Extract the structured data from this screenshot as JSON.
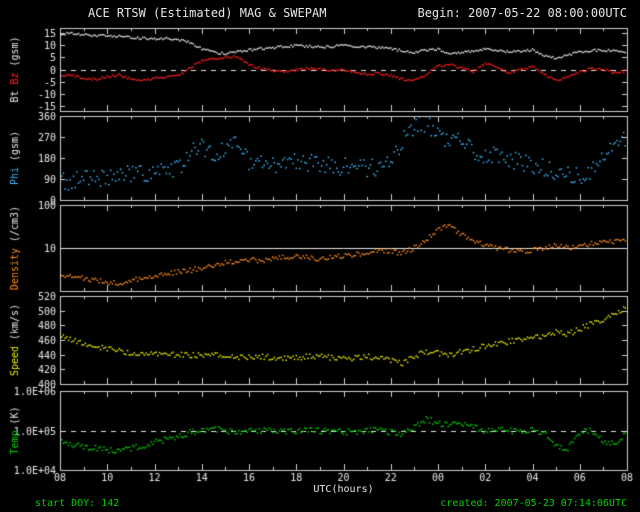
{
  "header": {
    "title": "ACE RTSW (Estimated) MAG & SWEPAM",
    "begin_label": "Begin: 2007-05-22 08:00:00UTC"
  },
  "footer": {
    "xaxis_label": "UTC(hours)",
    "start_doy": "start DOY: 142",
    "created": "created: 2007-05-23 07:14:06UTC"
  },
  "colors": {
    "background": "#000000",
    "frame": "#cfcfcf",
    "text": "#e6e6e6",
    "bt": "#e6e6e6",
    "bz": "#ff2020",
    "phi": "#3bb9ff",
    "density": "#ff8c1a",
    "speed": "#e8e800",
    "temp": "#00d000",
    "footer_green": "#00d000"
  },
  "chart_data": {
    "type": "scatter",
    "title": "ACE RTSW (Estimated) MAG & SWEPAM",
    "xlabel": "UTC(hours)",
    "xlim": [
      8,
      32
    ],
    "x_ticks": {
      "major_values": [
        8,
        10,
        12,
        14,
        16,
        18,
        20,
        22,
        24,
        26,
        28,
        30,
        32
      ],
      "labels": [
        "08",
        "10",
        "12",
        "14",
        "16",
        "18",
        "20",
        "22",
        "00",
        "02",
        "04",
        "06",
        "08"
      ],
      "minor_step": 1
    },
    "x": [
      8,
      8.5,
      9,
      9.5,
      10,
      10.5,
      11,
      11.5,
      12,
      12.5,
      13,
      13.5,
      14,
      14.5,
      15,
      15.5,
      16,
      16.5,
      17,
      17.5,
      18,
      18.5,
      19,
      19.5,
      20,
      20.5,
      21,
      21.5,
      22,
      22.5,
      23,
      23.5,
      24,
      24.5,
      25,
      25.5,
      26,
      26.5,
      27,
      27.5,
      28,
      28.5,
      29,
      29.5,
      30,
      30.5,
      31,
      31.5,
      32
    ],
    "panels": [
      {
        "name": "bt-bz",
        "log": false,
        "ylim": [
          -17,
          17
        ],
        "ticks": [
          {
            "v": 15,
            "l": "15"
          },
          {
            "v": 10,
            "l": "10"
          },
          {
            "v": 5,
            "l": "5"
          },
          {
            "v": 0,
            "l": "0"
          },
          {
            "v": -5,
            "l": "-5"
          },
          {
            "v": -10,
            "l": "-10"
          },
          {
            "v": -15,
            "l": "-15"
          }
        ],
        "ref_lines": [
          {
            "v": 0,
            "dash": true
          }
        ],
        "label_parts": [
          {
            "text": "Bt ",
            "color": "#e6e6e6"
          },
          {
            "text": "Bz ",
            "color": "#ff2020"
          },
          {
            "text": "(gsm)",
            "color": "#e6e6e6"
          }
        ],
        "series": [
          {
            "name": "Bt",
            "color": "#e6e6e6",
            "noise": 1.2,
            "values": [
              14.5,
              14.8,
              14.2,
              13.8,
              14.0,
              13.6,
              13.0,
              12.8,
              12.5,
              12.7,
              12.2,
              11.0,
              8.5,
              7.0,
              6.5,
              7.5,
              8.0,
              8.6,
              9.0,
              9.4,
              9.8,
              9.5,
              9.2,
              9.5,
              9.8,
              9.5,
              9.2,
              9.0,
              8.5,
              7.6,
              7.0,
              7.8,
              8.2,
              6.5,
              7.0,
              7.5,
              8.4,
              7.8,
              7.2,
              7.6,
              8.0,
              5.5,
              4.5,
              6.0,
              7.2,
              7.8,
              8.0,
              7.6,
              7.2
            ]
          },
          {
            "name": "Bz",
            "color": "#ff2020",
            "noise": 1.2,
            "values": [
              -3.0,
              -2.5,
              -3.5,
              -4.0,
              -3.0,
              -2.2,
              -4.0,
              -4.5,
              -3.5,
              -3.0,
              -2.5,
              0.5,
              3.5,
              4.5,
              5.0,
              5.5,
              2.0,
              0.5,
              -0.5,
              -1.0,
              0.0,
              0.5,
              0.0,
              -0.5,
              0.0,
              -1.0,
              -2.0,
              -1.5,
              -2.5,
              -4.0,
              -4.5,
              -2.0,
              1.5,
              2.0,
              0.5,
              -1.0,
              2.5,
              1.0,
              -1.5,
              0.0,
              1.0,
              -2.0,
              -4.5,
              -3.0,
              -1.0,
              0.5,
              0.0,
              -1.5,
              -0.5
            ]
          }
        ]
      },
      {
        "name": "phi",
        "log": false,
        "ylim": [
          0,
          360
        ],
        "ticks": [
          {
            "v": 360,
            "l": "360"
          },
          {
            "v": 270,
            "l": "270"
          },
          {
            "v": 180,
            "l": "180"
          },
          {
            "v": 90,
            "l": "90"
          },
          {
            "v": 0,
            "l": "0"
          }
        ],
        "ref_lines": [],
        "label_parts": [
          {
            "text": "Phi ",
            "color": "#3bb9ff"
          },
          {
            "text": "(gsm)",
            "color": "#e6e6e6"
          }
        ],
        "series": [
          {
            "name": "Phi",
            "color": "#3bb9ff",
            "noise": 9,
            "values": [
              78,
              82,
              88,
              92,
              98,
              104,
              110,
              116,
              122,
              130,
              136,
              200,
              225,
              195,
              215,
              235,
              165,
              152,
              146,
              156,
              166,
              160,
              152,
              146,
              142,
              138,
              136,
              142,
              152,
              250,
              310,
              330,
              275,
              235,
              255,
              205,
              182,
              192,
              172,
              162,
              152,
              142,
              122,
              112,
              102,
              132,
              182,
              225,
              265
            ]
          }
        ]
      },
      {
        "name": "density",
        "log": true,
        "ylim": [
          1,
          100
        ],
        "ticks": [
          {
            "v": 100,
            "l": "100"
          },
          {
            "v": 10,
            "l": "10"
          }
        ],
        "ref_lines": [
          {
            "v": 10,
            "dash": false
          }
        ],
        "label_parts": [
          {
            "text": "Density ",
            "color": "#ff8c1a"
          },
          {
            "text": "(/cm3)",
            "color": "#e6e6e6"
          }
        ],
        "series": [
          {
            "name": "Density",
            "color": "#ff8c1a",
            "noise": 2.5,
            "values": [
              2.5,
              2.2,
              2.0,
              1.8,
              1.6,
              1.5,
              1.7,
              2.0,
              2.2,
              2.5,
              2.8,
              3.0,
              3.5,
              4.0,
              4.5,
              5.0,
              5.5,
              5.0,
              5.5,
              6.0,
              6.5,
              6.0,
              5.5,
              6.0,
              6.5,
              7.0,
              8.0,
              9.0,
              8.5,
              7.5,
              10,
              15,
              28,
              32,
              20,
              15,
              12,
              10,
              9,
              8.5,
              9,
              10,
              12,
              10,
              11,
              13,
              15,
              14,
              16
            ]
          }
        ]
      },
      {
        "name": "speed",
        "log": false,
        "ylim": [
          400,
          520
        ],
        "ticks": [
          {
            "v": 520,
            "l": "520"
          },
          {
            "v": 500,
            "l": "500"
          },
          {
            "v": 480,
            "l": "480"
          },
          {
            "v": 460,
            "l": "460"
          },
          {
            "v": 440,
            "l": "440"
          },
          {
            "v": 420,
            "l": "420"
          },
          {
            "v": 400,
            "l": "400"
          }
        ],
        "ref_lines": [],
        "label_parts": [
          {
            "text": "Speed ",
            "color": "#e8e800"
          },
          {
            "text": "(km/s)",
            "color": "#e6e6e6"
          }
        ],
        "series": [
          {
            "name": "Speed",
            "color": "#e8e800",
            "noise": 2.8,
            "values": [
              465,
              460,
              456,
              452,
              448,
              445,
              443,
              442,
              441,
              440,
              440,
              439,
              440,
              442,
              438,
              436,
              437,
              438,
              436,
              435,
              436,
              437,
              438,
              436,
              435,
              436,
              437,
              436,
              433,
              428,
              438,
              444,
              442,
              440,
              444,
              448,
              452,
              455,
              458,
              460,
              463,
              466,
              470,
              468,
              475,
              482,
              488,
              495,
              506
            ]
          }
        ]
      },
      {
        "name": "temp",
        "log": true,
        "ylim": [
          10000,
          1000000
        ],
        "ticks": [
          {
            "v": 1000000,
            "l": "1.0E+06"
          },
          {
            "v": 100000,
            "l": "1.0E+05"
          },
          {
            "v": 10000,
            "l": "1.0E+04"
          }
        ],
        "ref_lines": [
          {
            "v": 100000,
            "dash": true
          }
        ],
        "label_parts": [
          {
            "text": "Temp ",
            "color": "#00d000"
          },
          {
            "text": "(K)",
            "color": "#e6e6e6"
          }
        ],
        "series": [
          {
            "name": "Temp",
            "color": "#00d000",
            "noise": 3,
            "values": [
              50000,
              45000,
              40000,
              35000,
              32000,
              30000,
              35000,
              40000,
              50000,
              60000,
              70000,
              90000,
              100000,
              110000,
              100000,
              90000,
              95000,
              100000,
              100000,
              95000,
              100000,
              105000,
              100000,
              95000,
              90000,
              95000,
              100000,
              100000,
              90000,
              80000,
              120000,
              200000,
              150000,
              130000,
              160000,
              120000,
              100000,
              110000,
              100000,
              90000,
              100000,
              80000,
              40000,
              35000,
              90000,
              100000,
              50000,
              45000,
              90000
            ]
          }
        ]
      }
    ]
  }
}
